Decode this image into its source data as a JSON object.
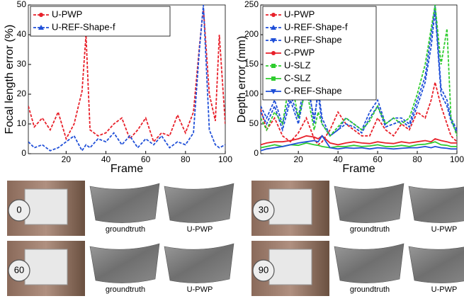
{
  "chart_data": [
    {
      "type": "line",
      "xlabel": "Frame",
      "ylabel": "Focal length error (%)",
      "x": [
        1,
        4,
        8,
        12,
        16,
        20,
        24,
        28,
        30,
        32,
        36,
        40,
        44,
        48,
        52,
        56,
        60,
        64,
        68,
        72,
        76,
        80,
        84,
        87,
        89,
        92,
        95,
        97,
        100
      ],
      "xlim": [
        1,
        100
      ],
      "xticks": [
        20,
        40,
        60,
        80,
        100
      ],
      "ylim": [
        0,
        50
      ],
      "yticks": [
        0,
        10,
        20,
        30,
        40,
        50
      ],
      "legend": "upper-left",
      "series": [
        {
          "name": "U-PWP",
          "color": "#e8202a",
          "style": "dashed",
          "marker": "circle",
          "values": [
            16,
            9,
            12,
            8,
            14,
            5,
            10,
            21,
            40,
            8,
            6,
            7,
            10,
            12,
            5,
            8,
            12,
            4,
            7,
            6,
            13,
            7,
            14,
            36,
            49,
            20,
            11,
            40,
            10
          ]
        },
        {
          "name": "U-REF-Shape-f",
          "color": "#1f4fd8",
          "style": "dashed",
          "marker": "triangle-up",
          "values": [
            4,
            2,
            3,
            1,
            2,
            4,
            6,
            1,
            3,
            2,
            5,
            4,
            7,
            3,
            6,
            2,
            5,
            3,
            6,
            2,
            4,
            3,
            7,
            35,
            50,
            8,
            3,
            2,
            3
          ]
        }
      ]
    },
    {
      "type": "line",
      "xlabel": "Frame",
      "ylabel": "Depth error (mm)",
      "x": [
        1,
        4,
        8,
        12,
        16,
        20,
        24,
        28,
        30,
        32,
        36,
        40,
        44,
        48,
        52,
        56,
        60,
        64,
        68,
        72,
        76,
        80,
        84,
        87,
        89,
        92,
        95,
        97,
        100
      ],
      "xlim": [
        1,
        100
      ],
      "xticks": [
        20,
        40,
        60,
        80,
        100
      ],
      "ylim": [
        0,
        250
      ],
      "yticks": [
        0,
        50,
        100,
        150,
        200,
        250
      ],
      "legend": "upper-left",
      "series": [
        {
          "name": "U-PWP",
          "color": "#e8202a",
          "style": "dashed",
          "marker": "circle",
          "values": [
            75,
            40,
            60,
            30,
            20,
            35,
            60,
            25,
            15,
            20,
            40,
            70,
            50,
            40,
            30,
            30,
            60,
            40,
            30,
            50,
            40,
            70,
            60,
            90,
            120,
            80,
            50,
            30,
            20
          ]
        },
        {
          "name": "U-REF-Shape-f",
          "color": "#1f4fd8",
          "style": "dashed",
          "marker": "triangle-up",
          "values": [
            80,
            60,
            90,
            50,
            100,
            60,
            140,
            50,
            110,
            60,
            30,
            40,
            60,
            50,
            40,
            70,
            90,
            50,
            60,
            60,
            50,
            90,
            130,
            200,
            250,
            110,
            90,
            60,
            40
          ]
        },
        {
          "name": "U-REF-Shape",
          "color": "#1f4fd8",
          "style": "dashed",
          "marker": "triangle-down",
          "values": [
            70,
            50,
            80,
            40,
            90,
            50,
            120,
            60,
            100,
            50,
            30,
            40,
            50,
            45,
            35,
            60,
            80,
            45,
            50,
            55,
            45,
            80,
            120,
            180,
            240,
            100,
            80,
            55,
            35
          ]
        },
        {
          "name": "C-PWP",
          "color": "#e8202a",
          "style": "solid",
          "marker": "circle",
          "values": [
            15,
            18,
            20,
            20,
            22,
            25,
            30,
            28,
            25,
            30,
            18,
            15,
            18,
            20,
            18,
            17,
            20,
            18,
            17,
            20,
            18,
            20,
            22,
            20,
            25,
            22,
            20,
            18,
            18
          ]
        },
        {
          "name": "U-SLZ",
          "color": "#2ecc2e",
          "style": "dashed",
          "marker": "square",
          "values": [
            60,
            40,
            70,
            50,
            130,
            60,
            110,
            40,
            70,
            50,
            30,
            45,
            60,
            50,
            40,
            55,
            80,
            50,
            60,
            50,
            60,
            100,
            150,
            210,
            250,
            150,
            210,
            60,
            30
          ]
        },
        {
          "name": "C-SLZ",
          "color": "#2ecc2e",
          "style": "solid",
          "marker": "square",
          "values": [
            10,
            12,
            15,
            12,
            15,
            14,
            18,
            15,
            14,
            12,
            10,
            12,
            12,
            14,
            12,
            13,
            15,
            12,
            12,
            14,
            12,
            15,
            16,
            18,
            20,
            15,
            14,
            12,
            12
          ]
        },
        {
          "name": "C-REF-Shape",
          "color": "#1f4fd8",
          "style": "solid",
          "marker": "triangle-down",
          "values": [
            5,
            8,
            10,
            12,
            15,
            18,
            20,
            22,
            20,
            30,
            10,
            8,
            10,
            9,
            10,
            8,
            10,
            9,
            8,
            9,
            10,
            10,
            12,
            10,
            12,
            10,
            9,
            8,
            8
          ]
        }
      ]
    }
  ],
  "panels": [
    {
      "frame": "0",
      "labels": [
        "groundtruth",
        "U-PWP"
      ]
    },
    {
      "frame": "30",
      "labels": [
        "groundtruth",
        "U-PWP"
      ]
    },
    {
      "frame": "60",
      "labels": [
        "groundtruth",
        "U-PWP"
      ]
    },
    {
      "frame": "90",
      "labels": [
        "groundtruth",
        "U-PWP"
      ]
    }
  ]
}
